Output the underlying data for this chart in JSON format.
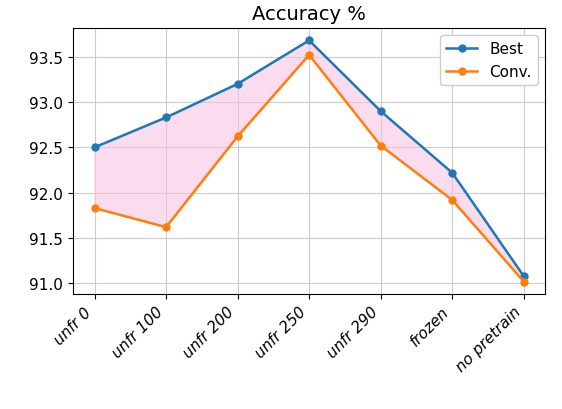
{
  "title": "Accuracy %",
  "categories": [
    "unfr 0",
    "unfr 100",
    "unfr 200",
    "unfr 250",
    "unfr 290",
    "frozen",
    "no pretrain"
  ],
  "best": [
    92.5,
    92.83,
    93.2,
    93.68,
    92.9,
    92.22,
    91.08
  ],
  "conv": [
    91.83,
    91.62,
    92.62,
    93.52,
    92.52,
    91.92,
    91.02
  ],
  "best_color": "#1f77b4",
  "conv_color": "#ff7f0e",
  "fill_color": "#f9c0e0",
  "fill_alpha": 0.55,
  "ylim": [
    90.88,
    93.82
  ],
  "yticks": [
    91.0,
    91.5,
    92.0,
    92.5,
    93.0,
    93.5
  ],
  "grid_color": "#cccccc",
  "legend_labels": [
    "Best",
    "Conv."
  ],
  "marker": "o",
  "marker_size": 5,
  "linewidth": 1.8,
  "title_fontsize": 14,
  "tick_fontsize": 11
}
